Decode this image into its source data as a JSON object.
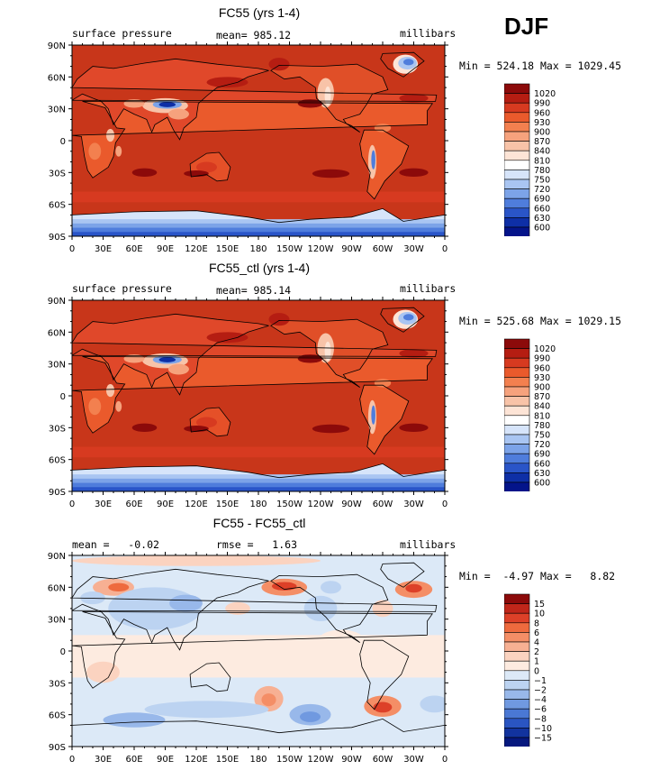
{
  "season": "DJF",
  "colors": {
    "pressure_bg": "#c8361a",
    "pressure_deep": "#8c0a0a",
    "pressure_light": "#f6c2a8",
    "pressure_low": "#0a22a0",
    "diff_bg": "#dce9f7",
    "diff_pos": "#f08a5c",
    "diff_neg": "#8eaee6"
  },
  "panels": [
    {
      "title": "FC55 (yrs 1-4)",
      "left_label": "surface pressure",
      "center_label": "mean= 985.12",
      "units": "millibars",
      "stats": "Min = 524.18 Max = 1029.45",
      "colorbar": {
        "labels": [
          "1020",
          "990",
          "960",
          "930",
          "900",
          "870",
          "840",
          "810",
          "780",
          "750",
          "720",
          "690",
          "660",
          "630",
          "600"
        ],
        "colors": [
          "#8c0a0a",
          "#b51d12",
          "#d73a20",
          "#ea5a2c",
          "#f3804f",
          "#f6a27d",
          "#f8c3a8",
          "#fde4d6",
          "#ffffff",
          "#d6e4fa",
          "#a9c5f2",
          "#7ca3e8",
          "#4f7ddc",
          "#2a55c8",
          "#0e2fa6",
          "#04148a"
        ]
      },
      "latitudes": [
        "90N",
        "60N",
        "30N",
        "0",
        "30S",
        "60S",
        "90S"
      ],
      "longitudes": [
        "0",
        "30E",
        "60E",
        "90E",
        "120E",
        "150E",
        "180",
        "150W",
        "120W",
        "90W",
        "60W",
        "30W",
        "0"
      ]
    },
    {
      "title": "FC55_ctl (yrs 1-4)",
      "left_label": "surface pressure",
      "center_label": "mean= 985.14",
      "units": "millibars",
      "stats": "Min = 525.68 Max = 1029.15",
      "colorbar": {
        "labels": [
          "1020",
          "990",
          "960",
          "930",
          "900",
          "870",
          "840",
          "810",
          "780",
          "750",
          "720",
          "690",
          "660",
          "630",
          "600"
        ],
        "colors": [
          "#8c0a0a",
          "#b51d12",
          "#d73a20",
          "#ea5a2c",
          "#f3804f",
          "#f6a27d",
          "#f8c3a8",
          "#fde4d6",
          "#ffffff",
          "#d6e4fa",
          "#a9c5f2",
          "#7ca3e8",
          "#4f7ddc",
          "#2a55c8",
          "#0e2fa6",
          "#04148a"
        ]
      },
      "latitudes": [
        "90N",
        "60N",
        "30N",
        "0",
        "30S",
        "60S",
        "90S"
      ],
      "longitudes": [
        "0",
        "30E",
        "60E",
        "90E",
        "120E",
        "150E",
        "180",
        "150W",
        "120W",
        "90W",
        "60W",
        "30W",
        "0"
      ]
    },
    {
      "title": "FC55 - FC55_ctl",
      "left_label": "mean =   -0.02",
      "center_label": "rmse =   1.63",
      "units": "millibars",
      "stats": "Min =  -4.97 Max =   8.82",
      "colorbar": {
        "labels": [
          "15",
          "10",
          "8",
          "6",
          "4",
          "2",
          "1",
          "0",
          "−1",
          "−2",
          "−4",
          "−6",
          "−8",
          "−10",
          "−15"
        ],
        "colors": [
          "#8c0a0a",
          "#c0261a",
          "#dd4028",
          "#ee6a3e",
          "#f48e66",
          "#f7b093",
          "#fbd3c0",
          "#fdebe0",
          "#dce9f7",
          "#bcd3f1",
          "#98b8ea",
          "#7099e0",
          "#4a78d4",
          "#2a55c2",
          "#12339e",
          "#06187e"
        ]
      },
      "latitudes": [
        "90N",
        "60N",
        "30N",
        "0",
        "30S",
        "60S",
        "90S"
      ],
      "longitudes": [
        "0",
        "30E",
        "60E",
        "90E",
        "120E",
        "150E",
        "180",
        "150W",
        "120W",
        "90W",
        "60W",
        "30W",
        "0"
      ]
    }
  ]
}
